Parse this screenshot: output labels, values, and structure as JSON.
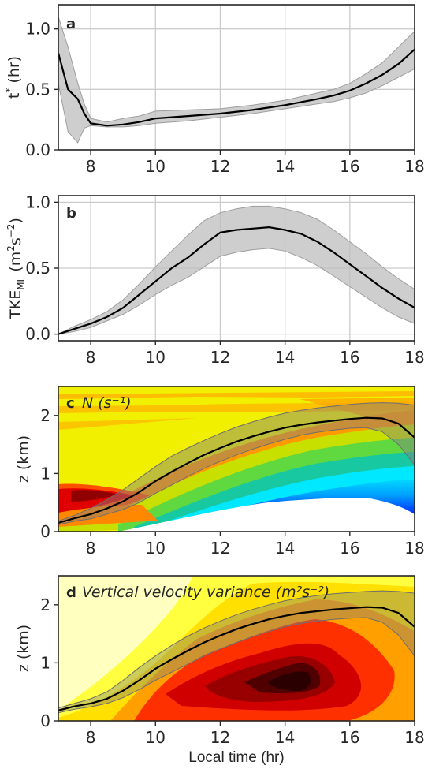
{
  "chart_data": [
    {
      "panel": "a",
      "type": "line",
      "title": "",
      "ylabel": "t* (hr)",
      "xlabel": "",
      "xlim": [
        7,
        18
      ],
      "ylim": [
        0,
        1.2
      ],
      "xticks": [
        8,
        10,
        12,
        14,
        16,
        18
      ],
      "yticks": [
        0.0,
        0.5,
        1.0
      ],
      "ytick_labels": [
        "0.0",
        "0.5",
        "1.0"
      ],
      "grid": true,
      "x": [
        7.0,
        7.3,
        7.6,
        7.8,
        8.0,
        8.5,
        9.0,
        9.5,
        10.0,
        11.0,
        12.0,
        13.0,
        14.0,
        15.0,
        15.5,
        16.0,
        16.5,
        17.0,
        17.5,
        18.0
      ],
      "y": [
        0.8,
        0.5,
        0.42,
        0.3,
        0.22,
        0.2,
        0.21,
        0.23,
        0.26,
        0.28,
        0.3,
        0.33,
        0.37,
        0.42,
        0.45,
        0.49,
        0.55,
        0.62,
        0.71,
        0.83
      ],
      "y_low": [
        0.55,
        0.15,
        0.06,
        0.18,
        0.2,
        0.19,
        0.19,
        0.2,
        0.22,
        0.24,
        0.27,
        0.3,
        0.34,
        0.38,
        0.4,
        0.43,
        0.47,
        0.53,
        0.6,
        0.67
      ],
      "y_high": [
        1.1,
        0.85,
        0.55,
        0.38,
        0.26,
        0.23,
        0.26,
        0.28,
        0.32,
        0.33,
        0.34,
        0.37,
        0.41,
        0.47,
        0.5,
        0.55,
        0.63,
        0.72,
        0.85,
        0.98
      ]
    },
    {
      "panel": "b",
      "type": "line",
      "title": "",
      "ylabel": "TKE_ML (m²s⁻²)",
      "xlabel": "",
      "xlim": [
        7,
        18
      ],
      "ylim": [
        -0.05,
        1.05
      ],
      "xticks": [
        8,
        10,
        12,
        14,
        16,
        18
      ],
      "yticks": [
        0.0,
        0.5,
        1.0
      ],
      "ytick_labels": [
        "0.0",
        "0.5",
        "1.0"
      ],
      "grid": true,
      "x": [
        7.0,
        7.5,
        8.0,
        8.5,
        9.0,
        9.5,
        10.0,
        10.5,
        11.0,
        11.5,
        12.0,
        12.5,
        13.0,
        13.5,
        14.0,
        14.5,
        15.0,
        15.5,
        16.0,
        16.5,
        17.0,
        17.5,
        18.0
      ],
      "y": [
        0.0,
        0.04,
        0.08,
        0.13,
        0.2,
        0.3,
        0.4,
        0.5,
        0.58,
        0.68,
        0.77,
        0.79,
        0.8,
        0.81,
        0.79,
        0.76,
        0.7,
        0.62,
        0.53,
        0.44,
        0.35,
        0.27,
        0.2
      ],
      "y_low": [
        0.0,
        0.02,
        0.05,
        0.1,
        0.15,
        0.22,
        0.3,
        0.37,
        0.43,
        0.51,
        0.59,
        0.62,
        0.64,
        0.65,
        0.63,
        0.58,
        0.52,
        0.44,
        0.36,
        0.28,
        0.2,
        0.13,
        0.08
      ],
      "y_high": [
        0.0,
        0.06,
        0.11,
        0.17,
        0.26,
        0.38,
        0.51,
        0.63,
        0.75,
        0.86,
        0.92,
        0.95,
        0.97,
        0.97,
        0.95,
        0.92,
        0.87,
        0.79,
        0.7,
        0.61,
        0.51,
        0.42,
        0.34
      ]
    },
    {
      "panel": "c",
      "type": "heatmap",
      "title": "N (s⁻¹)",
      "ylabel": "z (km)",
      "xlabel": "",
      "xlim": [
        7,
        18
      ],
      "ylim": [
        0,
        2.5
      ],
      "xticks": [
        8,
        10,
        12,
        14,
        16,
        18
      ],
      "yticks": [
        0,
        1,
        2
      ],
      "ytick_labels": [
        "0",
        "1",
        "2"
      ],
      "grid": false,
      "colormap": "jet",
      "boundary_layer_height": {
        "x": [
          7.0,
          7.5,
          8.0,
          8.5,
          9.0,
          9.5,
          10.0,
          10.5,
          11.0,
          11.5,
          12.0,
          12.5,
          13.0,
          13.5,
          14.0,
          14.5,
          15.0,
          15.5,
          16.0,
          16.5,
          17.0,
          17.5,
          18.0
        ],
        "y": [
          0.15,
          0.23,
          0.3,
          0.4,
          0.52,
          0.68,
          0.87,
          1.03,
          1.18,
          1.32,
          1.44,
          1.55,
          1.64,
          1.72,
          1.79,
          1.84,
          1.88,
          1.91,
          1.94,
          1.96,
          1.95,
          1.86,
          1.62
        ],
        "y_low": [
          0.12,
          0.18,
          0.22,
          0.3,
          0.38,
          0.5,
          0.66,
          0.8,
          0.95,
          1.09,
          1.21,
          1.32,
          1.42,
          1.51,
          1.59,
          1.66,
          1.71,
          1.75,
          1.78,
          1.79,
          1.72,
          1.5,
          1.15
        ],
        "y_high": [
          0.18,
          0.28,
          0.4,
          0.55,
          0.72,
          0.92,
          1.12,
          1.3,
          1.44,
          1.57,
          1.69,
          1.8,
          1.89,
          1.97,
          2.04,
          2.09,
          2.13,
          2.16,
          2.19,
          2.21,
          2.22,
          2.21,
          2.18
        ]
      }
    },
    {
      "panel": "d",
      "type": "heatmap",
      "title": "Vertical velocity variance (m²s⁻²)",
      "ylabel": "z (km)",
      "xlabel": "Local time (hr)",
      "xlim": [
        7,
        18
      ],
      "ylim": [
        0,
        2.5
      ],
      "xticks": [
        8,
        10,
        12,
        14,
        16,
        18
      ],
      "yticks": [
        0,
        1,
        2
      ],
      "ytick_labels": [
        "0",
        "1",
        "2"
      ],
      "grid": false,
      "colormap": "hot_r",
      "boundary_layer_height": {
        "x": [
          7.0,
          7.5,
          8.0,
          8.5,
          9.0,
          9.5,
          10.0,
          10.5,
          11.0,
          11.5,
          12.0,
          12.5,
          13.0,
          13.5,
          14.0,
          14.5,
          15.0,
          15.5,
          16.0,
          16.5,
          17.0,
          17.5,
          18.0
        ],
        "y": [
          0.18,
          0.25,
          0.3,
          0.38,
          0.52,
          0.7,
          0.9,
          1.06,
          1.21,
          1.35,
          1.47,
          1.58,
          1.67,
          1.75,
          1.81,
          1.86,
          1.89,
          1.92,
          1.94,
          1.96,
          1.95,
          1.86,
          1.62
        ],
        "y_low": [
          0.14,
          0.2,
          0.24,
          0.3,
          0.4,
          0.54,
          0.7,
          0.84,
          0.98,
          1.12,
          1.24,
          1.35,
          1.45,
          1.54,
          1.62,
          1.68,
          1.72,
          1.75,
          1.77,
          1.78,
          1.7,
          1.48,
          1.12
        ],
        "y_high": [
          0.22,
          0.3,
          0.38,
          0.5,
          0.7,
          0.92,
          1.12,
          1.3,
          1.46,
          1.6,
          1.72,
          1.83,
          1.92,
          2.0,
          2.07,
          2.12,
          2.16,
          2.19,
          2.21,
          2.23,
          2.24,
          2.23,
          2.2
        ]
      }
    }
  ]
}
